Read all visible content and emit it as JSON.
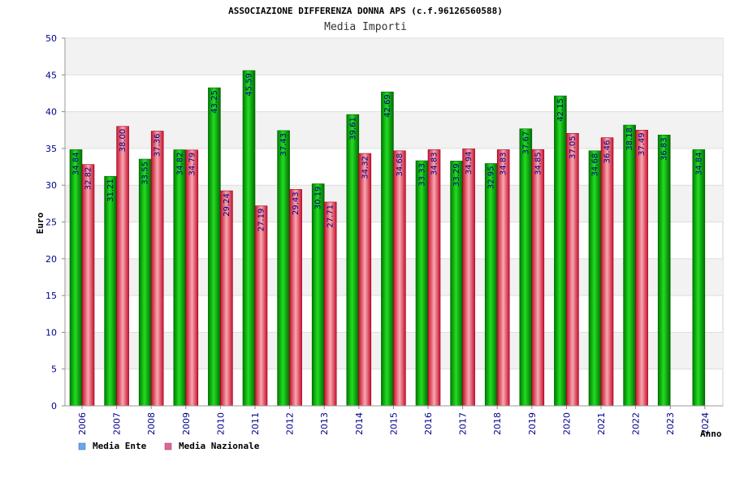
{
  "chart_data": {
    "type": "bar",
    "title": "ASSOCIAZIONE DIFFERENZA DONNA APS (c.f.96126560588)",
    "subtitle": "Media Importi",
    "ylabel": "Euro",
    "xlabel": "Anno",
    "ylim": [
      0,
      50
    ],
    "yticks": [
      0,
      5,
      10,
      15,
      20,
      25,
      30,
      35,
      40,
      45,
      50
    ],
    "grid": "horizontal bands",
    "legend_position": "bottom-left",
    "categories": [
      "2006",
      "2007",
      "2008",
      "2009",
      "2010",
      "2011",
      "2012",
      "2013",
      "2014",
      "2015",
      "2016",
      "2017",
      "2018",
      "2019",
      "2020",
      "2021",
      "2022",
      "2023",
      "2024"
    ],
    "series": [
      {
        "name": "Media Ente",
        "legend_color": "#66aaee",
        "color": "#00aa00",
        "values": [
          34.84,
          31.21,
          33.55,
          34.82,
          43.25,
          45.59,
          37.43,
          30.19,
          39.61,
          42.69,
          33.33,
          33.29,
          32.95,
          37.67,
          42.15,
          34.68,
          38.18,
          36.83,
          34.84
        ],
        "labels": [
          "34.84",
          "31.21",
          "33.55",
          "34.82",
          "43.25",
          "45.59",
          "37.43",
          "30.19",
          "39.61",
          "42.69",
          "33.33",
          "33.29",
          "32.95",
          "37.67",
          "42.15",
          "34.68",
          "38.18",
          "36.83",
          "34.84"
        ]
      },
      {
        "name": "Media Nazionale",
        "legend_color": "#dd6699",
        "color": "#e8303c",
        "values": [
          32.82,
          38.0,
          37.36,
          34.79,
          29.24,
          27.19,
          29.43,
          27.71,
          34.32,
          34.68,
          34.83,
          34.94,
          34.83,
          34.85,
          37.05,
          36.46,
          37.49,
          null,
          null
        ],
        "labels": [
          "32.82",
          "38.00",
          "37.36",
          "34.79",
          "29.24",
          "27.19",
          "29.43",
          "27.71",
          "34.32",
          "34.68",
          "34.83",
          "34.94",
          "34.83",
          "34.85",
          "37.05",
          "36.46",
          "37.49",
          null,
          null
        ]
      }
    ]
  }
}
